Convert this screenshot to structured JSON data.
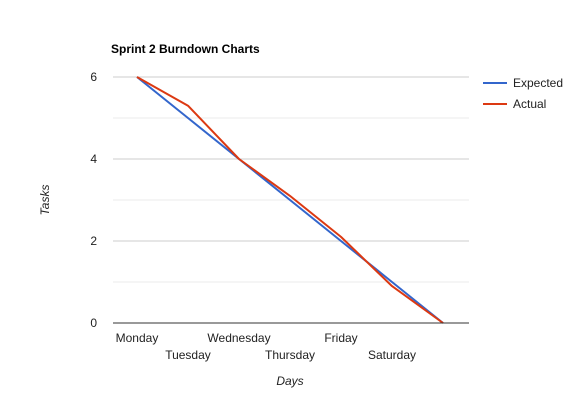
{
  "chart_data": {
    "type": "line",
    "title": "Sprint 2 Burndown Charts",
    "xlabel": "Days",
    "ylabel": "Tasks",
    "categories": [
      "Monday",
      "Tuesday",
      "Wednesday",
      "Thursday",
      "Friday",
      "Saturday",
      ""
    ],
    "ylim": [
      0,
      6
    ],
    "yticks": [
      0,
      2,
      4,
      6
    ],
    "grid": true,
    "legend": "right",
    "series": [
      {
        "name": "Expected",
        "color": "#3366cc",
        "values": [
          6,
          5,
          4,
          3,
          2,
          1,
          0
        ]
      },
      {
        "name": "Actual",
        "color": "#dc3912",
        "values": [
          6,
          5.3,
          4,
          3.1,
          2.1,
          0.9,
          0
        ]
      }
    ]
  }
}
